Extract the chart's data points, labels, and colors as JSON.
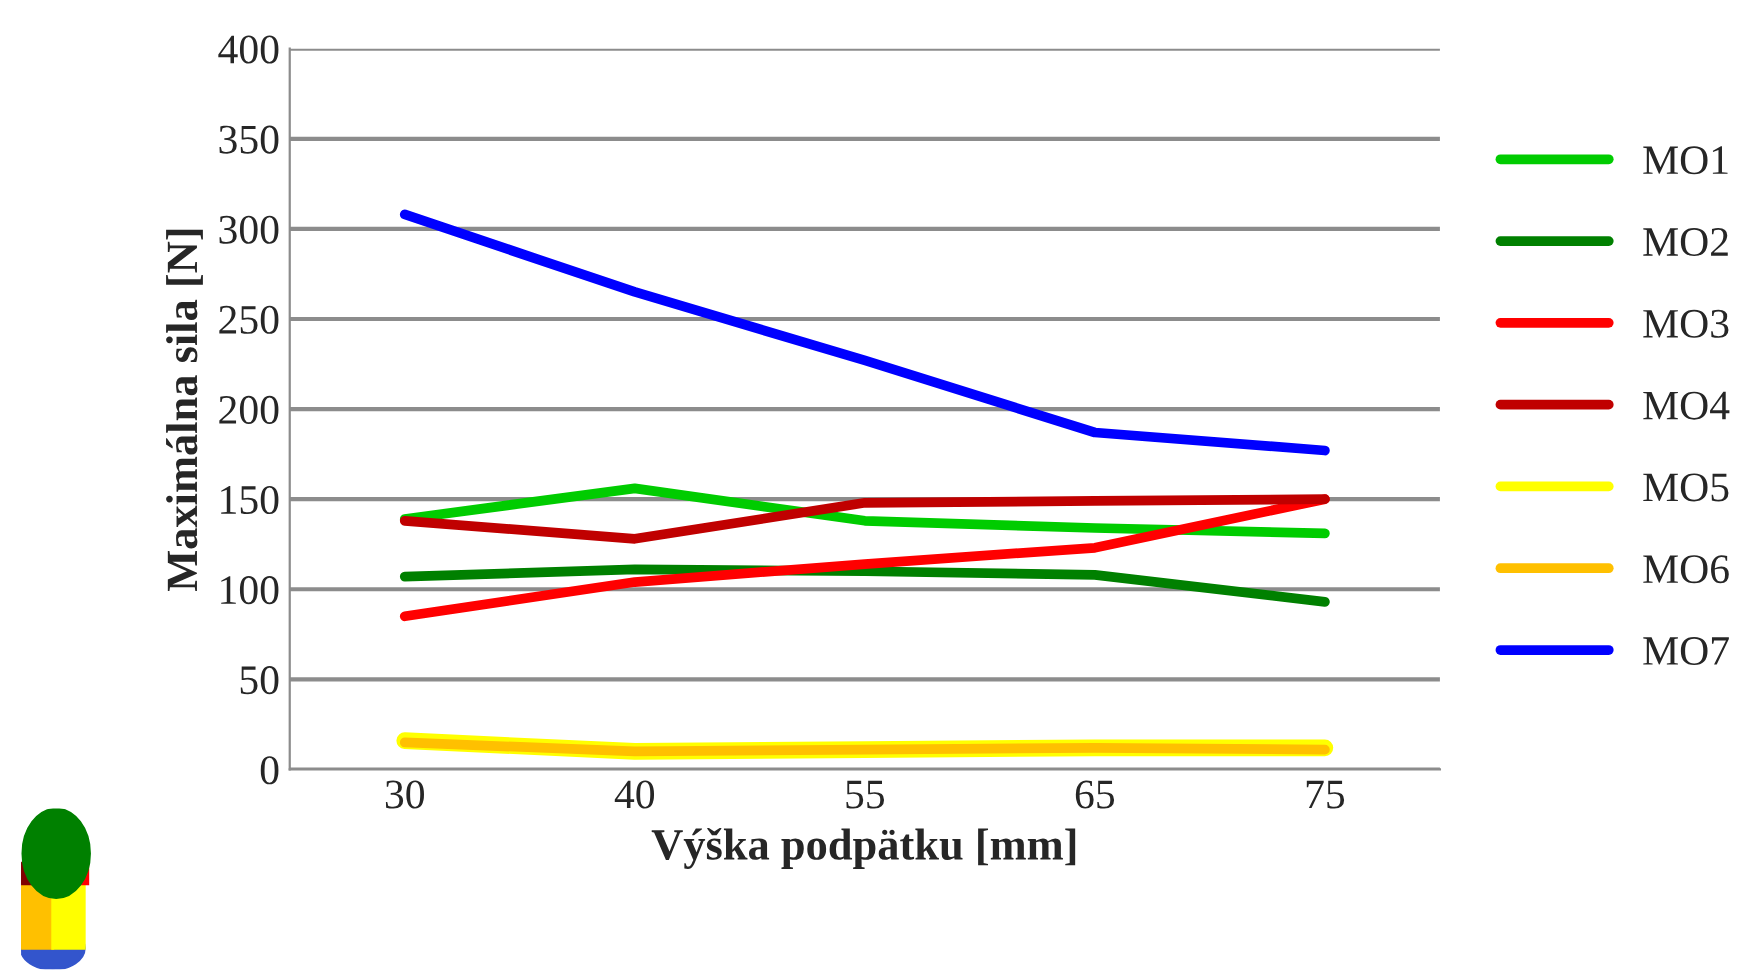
{
  "chart_data": {
    "type": "line",
    "xlabel": "Výška podpätku [mm]",
    "ylabel": "Maximálna sila [N]",
    "categories": [
      "30",
      "40",
      "55",
      "65",
      "75"
    ],
    "series": [
      {
        "name": "MO1",
        "color": "#00cc00",
        "values": [
          139,
          156,
          138,
          134,
          131
        ]
      },
      {
        "name": "MO2",
        "color": "#008000",
        "values": [
          107,
          111,
          110,
          108,
          93
        ]
      },
      {
        "name": "MO3",
        "color": "#ff0000",
        "values": [
          85,
          104,
          114,
          123,
          150
        ]
      },
      {
        "name": "MO4",
        "color": "#c00000",
        "values": [
          138,
          128,
          148,
          149,
          150
        ]
      },
      {
        "name": "MO5",
        "color": "#ffff00",
        "values": [
          16,
          10,
          11,
          12,
          12
        ]
      },
      {
        "name": "MO6",
        "color": "#ffc000",
        "values": [
          15,
          10,
          11,
          12,
          11
        ]
      },
      {
        "name": "MO7",
        "color": "#0000ff",
        "values": [
          308,
          265,
          227,
          187,
          177
        ]
      }
    ],
    "ylim": [
      0,
      400
    ],
    "yticks": [
      0,
      50,
      100,
      150,
      200,
      250,
      300,
      350,
      400
    ],
    "grid": "y",
    "legend": "right",
    "marker": "none",
    "line_style": "solid"
  }
}
